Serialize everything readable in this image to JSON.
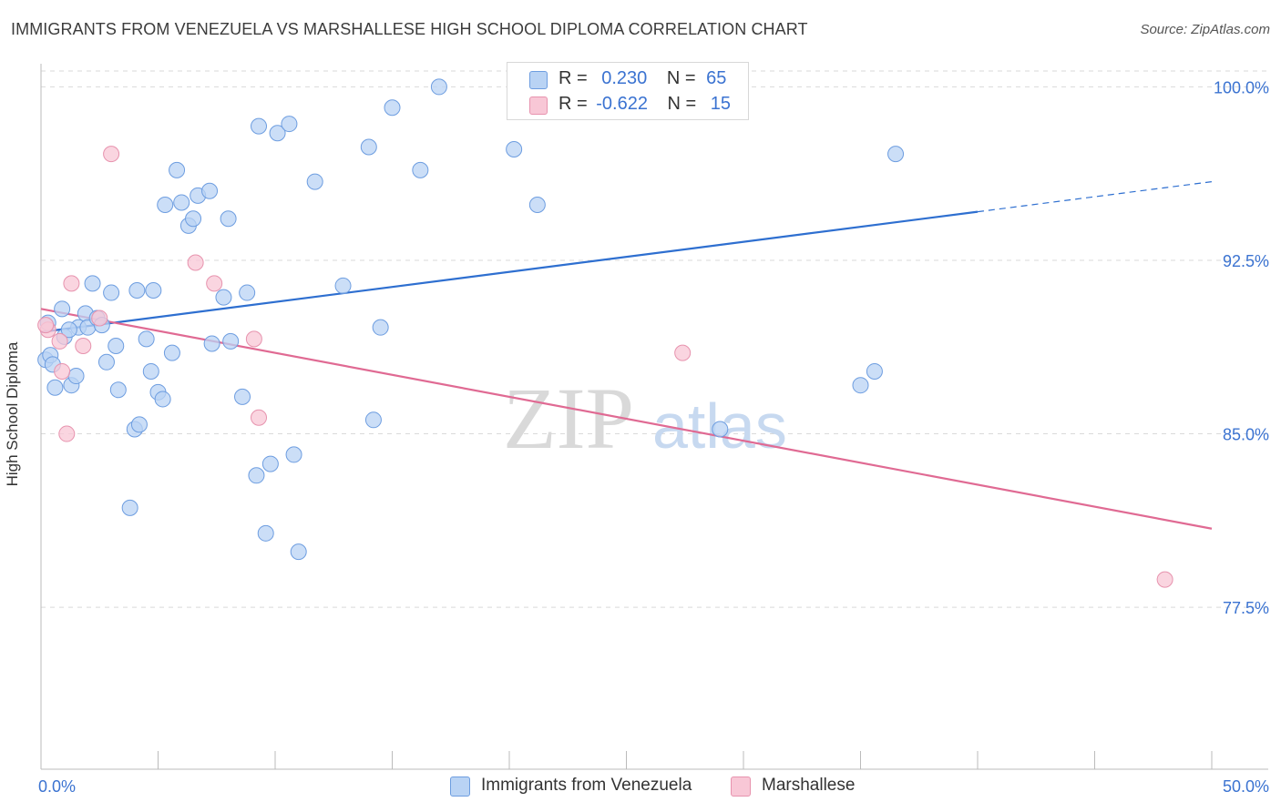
{
  "title": "IMMIGRANTS FROM VENEZUELA VS MARSHALLESE HIGH SCHOOL DIPLOMA CORRELATION CHART",
  "source": "Source: ZipAtlas.com",
  "watermark": {
    "zip": "ZIP",
    "atlas": "atlas"
  },
  "legend_top": {
    "rows": [
      {
        "r_label": "R =",
        "r_value": "0.230",
        "n_label": "N =",
        "n_value": "65"
      },
      {
        "r_label": "R =",
        "r_value": "-0.622",
        "n_label": "N =",
        "n_value": "15"
      }
    ]
  },
  "chart_data": {
    "type": "scatter",
    "title": "IMMIGRANTS FROM VENEZUELA VS MARSHALLESE HIGH SCHOOL DIPLOMA CORRELATION CHART",
    "xlabel": "",
    "ylabel": "High School Diploma",
    "xlim": [
      0,
      50
    ],
    "ylim": [
      70.5,
      101
    ],
    "x_tick_labels": [
      "0.0%",
      "50.0%"
    ],
    "y_ticks": [
      77.5,
      85.0,
      92.5,
      100.0
    ],
    "y_tick_labels": [
      "77.5%",
      "85.0%",
      "92.5%",
      "100.0%"
    ],
    "grid": true,
    "colors": {
      "venezuela_fill": "#b9d3f4",
      "venezuela_stroke": "#6d9de0",
      "venezuela_line": "#2e6fd0",
      "marshallese_fill": "#f8c7d6",
      "marshallese_stroke": "#e793ae",
      "marshallese_line": "#e06a93",
      "axis_label_blue": "#3b73d1"
    },
    "series": [
      {
        "name": "Immigrants from Venezuela",
        "r": 0.23,
        "n": 65,
        "trend": {
          "x0": 0,
          "y0": 89.4,
          "x1": 40,
          "y1": 94.6,
          "dashed_to": 50,
          "y_dashed_end": 95.9
        },
        "points": [
          [
            0.2,
            88.2
          ],
          [
            0.4,
            88.4
          ],
          [
            0.3,
            89.8
          ],
          [
            0.6,
            87.0
          ],
          [
            1.0,
            89.2
          ],
          [
            0.9,
            90.4
          ],
          [
            1.3,
            87.1
          ],
          [
            1.5,
            87.5
          ],
          [
            1.6,
            89.6
          ],
          [
            1.9,
            90.2
          ],
          [
            2.0,
            89.6
          ],
          [
            2.2,
            91.5
          ],
          [
            2.4,
            90.0
          ],
          [
            2.6,
            89.7
          ],
          [
            2.8,
            88.1
          ],
          [
            3.0,
            91.1
          ],
          [
            3.2,
            88.8
          ],
          [
            3.3,
            86.9
          ],
          [
            3.8,
            81.8
          ],
          [
            4.0,
            85.2
          ],
          [
            4.2,
            85.4
          ],
          [
            4.1,
            91.2
          ],
          [
            4.5,
            89.1
          ],
          [
            4.7,
            87.7
          ],
          [
            4.8,
            91.2
          ],
          [
            5.0,
            86.8
          ],
          [
            5.2,
            86.5
          ],
          [
            5.3,
            94.9
          ],
          [
            5.6,
            88.5
          ],
          [
            5.8,
            96.4
          ],
          [
            6.0,
            95.0
          ],
          [
            6.3,
            94.0
          ],
          [
            6.5,
            94.3
          ],
          [
            6.7,
            95.3
          ],
          [
            7.2,
            95.5
          ],
          [
            7.3,
            88.9
          ],
          [
            7.8,
            90.9
          ],
          [
            8.0,
            94.3
          ],
          [
            8.1,
            89.0
          ],
          [
            8.6,
            86.6
          ],
          [
            8.8,
            91.1
          ],
          [
            9.2,
            83.2
          ],
          [
            9.3,
            98.3
          ],
          [
            9.6,
            80.7
          ],
          [
            9.8,
            83.7
          ],
          [
            10.1,
            98.0
          ],
          [
            10.6,
            98.4
          ],
          [
            10.8,
            84.1
          ],
          [
            11.0,
            79.9
          ],
          [
            11.7,
            95.9
          ],
          [
            12.9,
            91.4
          ],
          [
            14.0,
            97.4
          ],
          [
            14.2,
            85.6
          ],
          [
            14.5,
            89.6
          ],
          [
            15.0,
            99.1
          ],
          [
            16.2,
            96.4
          ],
          [
            17.0,
            100.0
          ],
          [
            20.2,
            97.3
          ],
          [
            21.2,
            94.9
          ],
          [
            29.0,
            85.2
          ],
          [
            35.0,
            87.1
          ],
          [
            35.6,
            87.7
          ],
          [
            36.5,
            97.1
          ],
          [
            0.5,
            88.0
          ],
          [
            1.2,
            89.5
          ]
        ]
      },
      {
        "name": "Marshallese",
        "r": -0.622,
        "n": 15,
        "trend": {
          "x0": 0,
          "y0": 90.4,
          "x1": 50,
          "y1": 80.9
        },
        "points": [
          [
            0.3,
            89.5
          ],
          [
            0.8,
            89.0
          ],
          [
            0.9,
            87.7
          ],
          [
            1.1,
            85.0
          ],
          [
            1.3,
            91.5
          ],
          [
            1.8,
            88.8
          ],
          [
            2.5,
            90.0
          ],
          [
            3.0,
            97.1
          ],
          [
            6.6,
            92.4
          ],
          [
            7.4,
            91.5
          ],
          [
            9.1,
            89.1
          ],
          [
            9.3,
            85.7
          ],
          [
            27.4,
            88.5
          ],
          [
            48.0,
            78.7
          ],
          [
            0.2,
            89.7
          ]
        ]
      }
    ]
  },
  "bottom_legend": [
    {
      "label": "Immigrants from Venezuela"
    },
    {
      "label": "Marshallese"
    }
  ]
}
